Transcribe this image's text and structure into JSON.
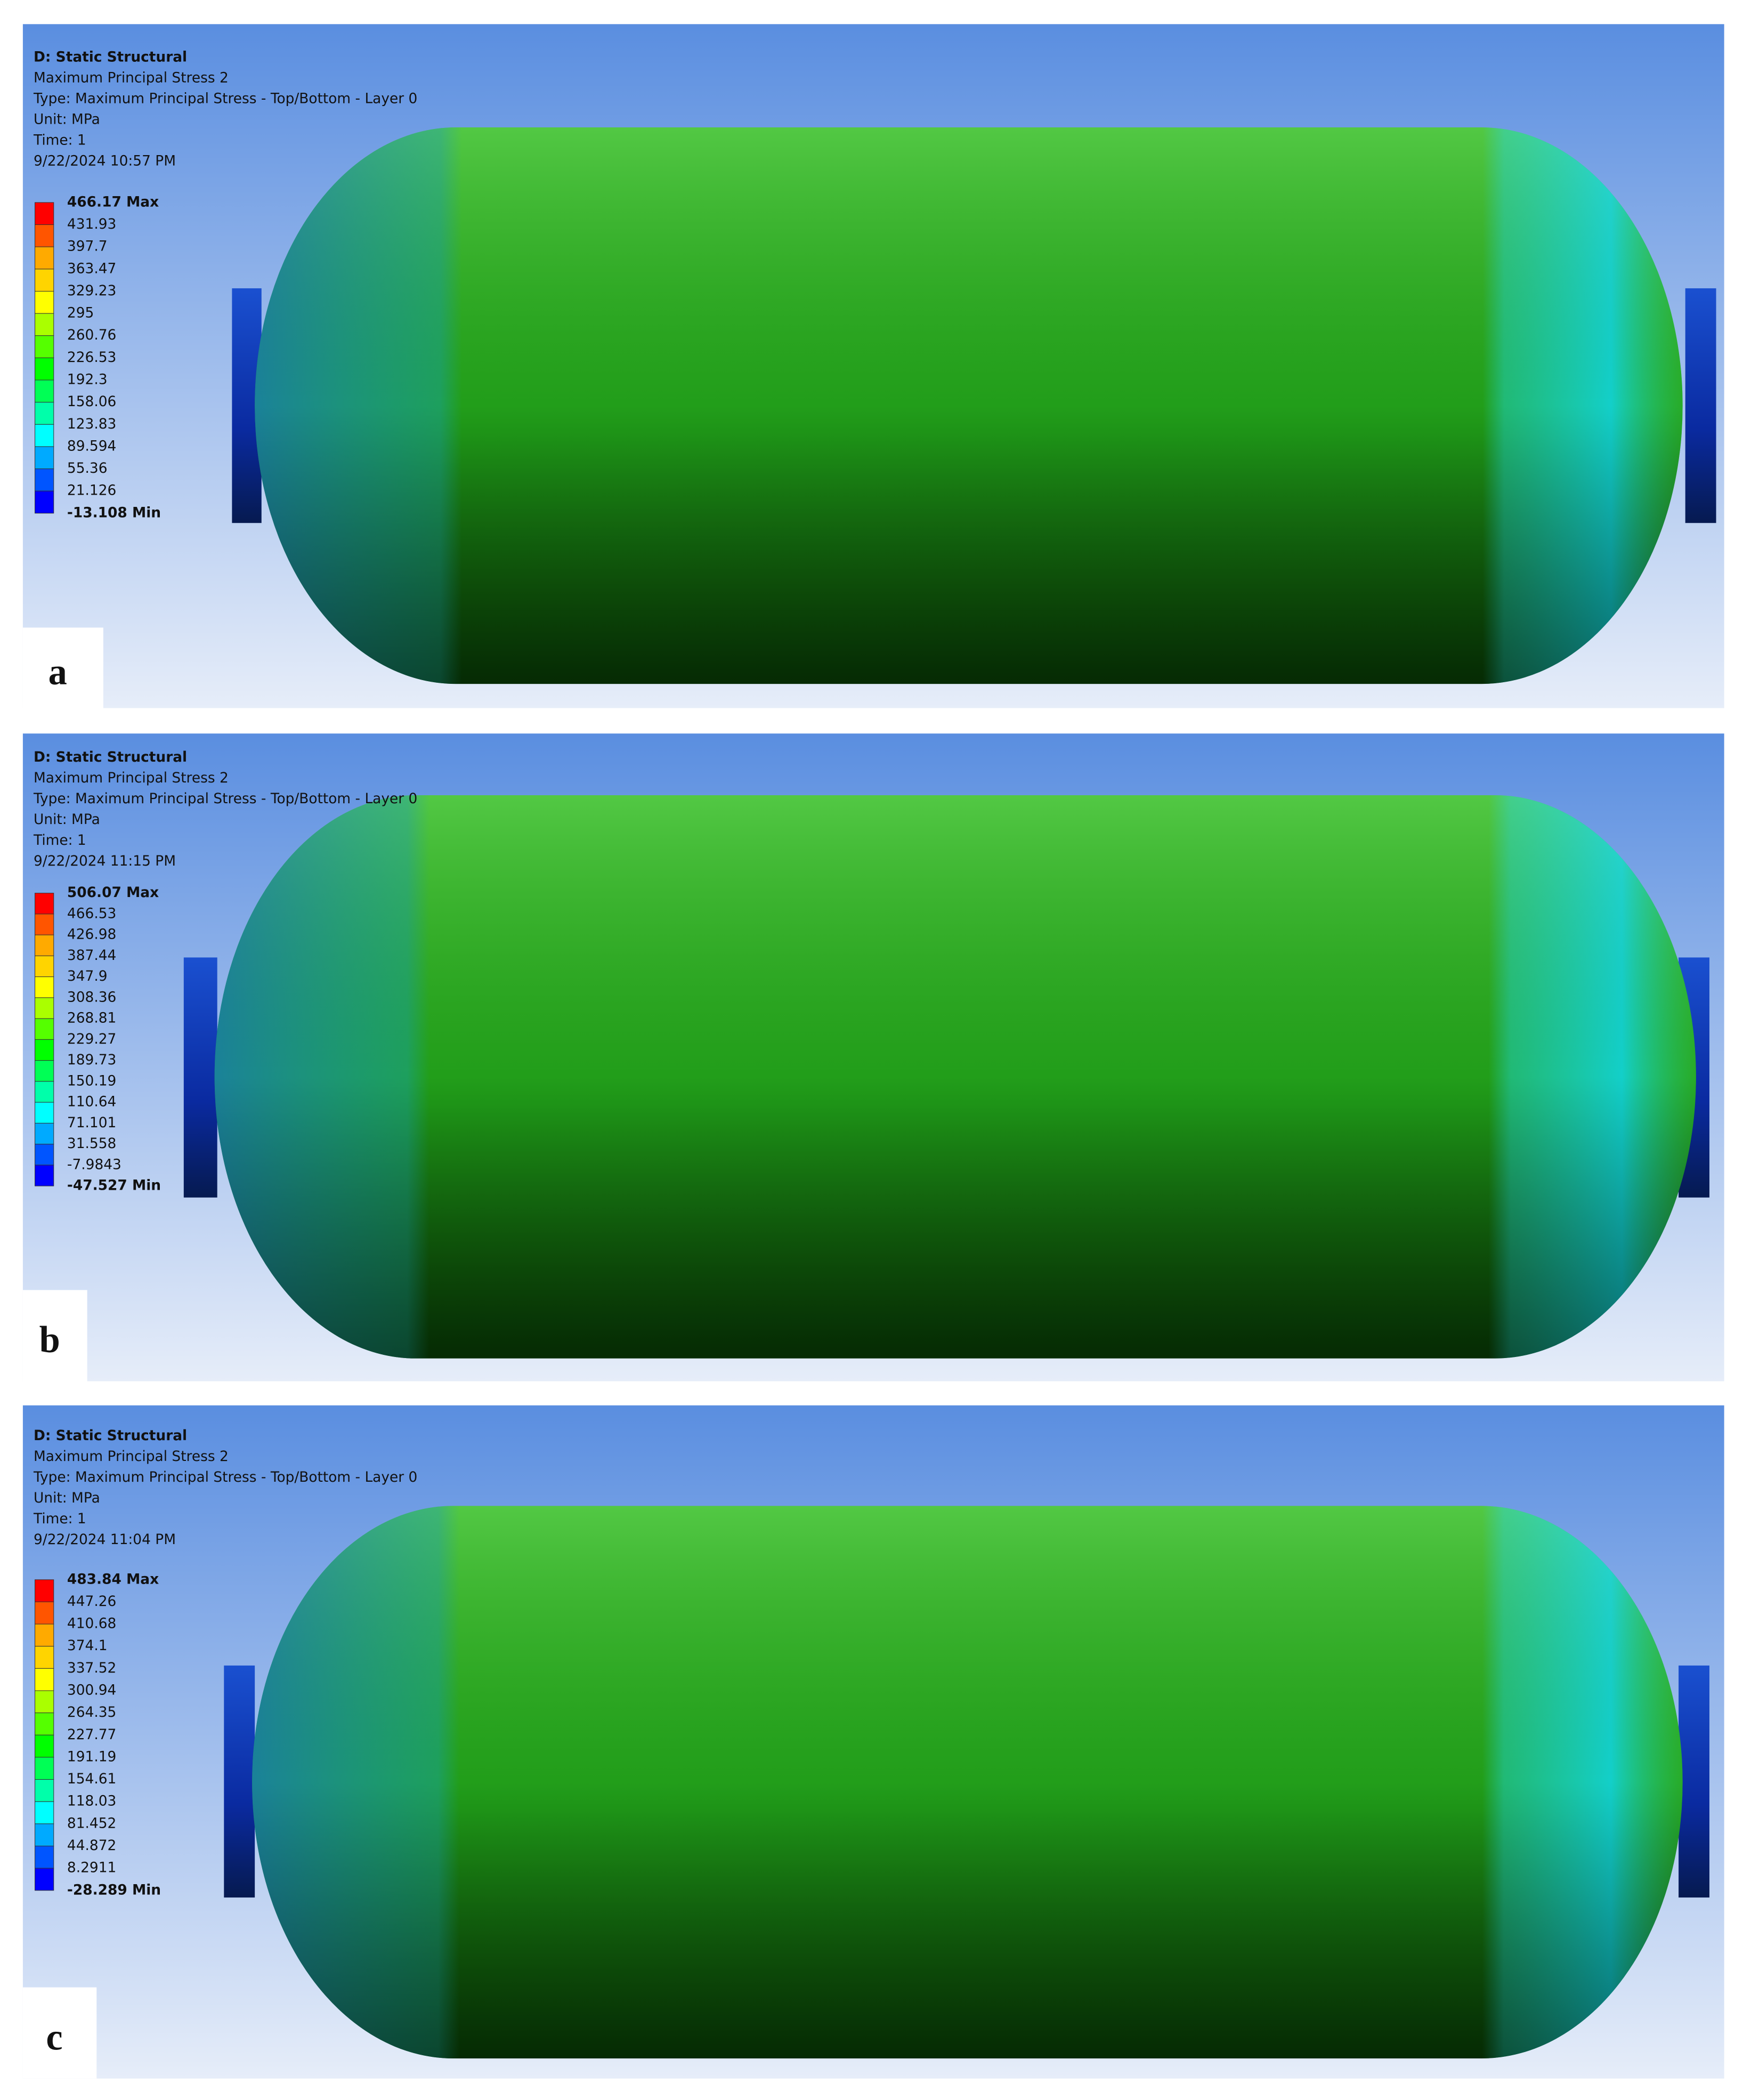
{
  "panels": [
    {
      "label": "a",
      "header": [
        "D: Static Structural",
        "Maximum Principal Stress 2",
        "Type: Maximum Principal Stress - Top/Bottom - Layer 0",
        "Unit: MPa",
        "Time: 1",
        "9/22/2024 10:57 PM"
      ],
      "legend": [
        "466.17 Max",
        "431.93",
        "397.7",
        "363.47",
        "329.23",
        "295",
        "260.76",
        "226.53",
        "192.3",
        "158.06",
        "123.83",
        "89.594",
        "55.36",
        "21.126",
        "-13.108 Min"
      ]
    },
    {
      "label": "b",
      "header": [
        "D: Static Structural",
        "Maximum Principal Stress 2",
        "Type: Maximum Principal Stress - Top/Bottom - Layer 0",
        "Unit: MPa",
        "Time: 1",
        "9/22/2024 11:15 PM"
      ],
      "legend": [
        "506.07 Max",
        "466.53",
        "426.98",
        "387.44",
        "347.9",
        "308.36",
        "268.81",
        "229.27",
        "189.73",
        "150.19",
        "110.64",
        "71.101",
        "31.558",
        "-7.9843",
        "-47.527 Min"
      ]
    },
    {
      "label": "c",
      "header": [
        "D: Static Structural",
        "Maximum Principal Stress 2",
        "Type: Maximum Principal Stress - Top/Bottom - Layer 0",
        "Unit: MPa",
        "Time: 1",
        "9/22/2024 11:04 PM"
      ],
      "legend": [
        "483.84 Max",
        "447.26",
        "410.68",
        "374.1",
        "337.52",
        "300.94",
        "264.35",
        "227.77",
        "191.19",
        "154.61",
        "118.03",
        "81.452",
        "44.872",
        "8.2911",
        "-28.289 Min"
      ]
    }
  ]
}
